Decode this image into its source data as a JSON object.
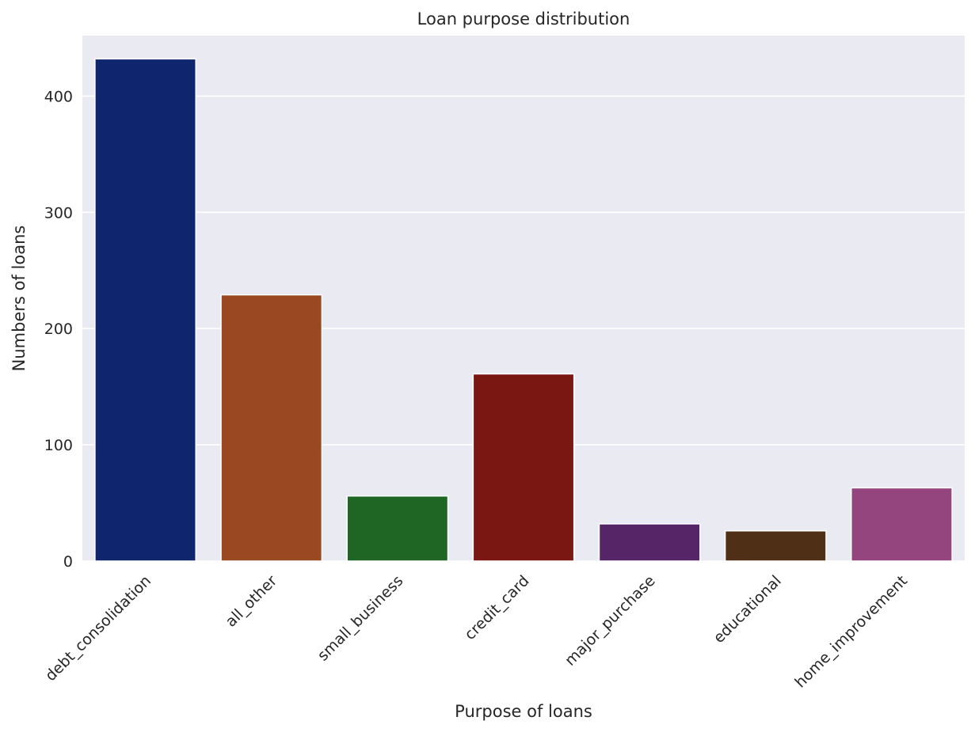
{
  "chart_data": {
    "type": "bar",
    "title": "Loan purpose distribution",
    "xlabel": "Purpose of loans",
    "ylabel": "Numbers of loans",
    "categories": [
      "debt_consolidation",
      "all_other",
      "small_business",
      "credit_card",
      "major_purchase",
      "educational",
      "home_improvement"
    ],
    "values": [
      432,
      229,
      56,
      161,
      32,
      26,
      63
    ],
    "ylim": [
      0,
      452
    ],
    "yticks": [
      0,
      100,
      200,
      300,
      400
    ],
    "colors": [
      "#0f266f",
      "#9a4821",
      "#1f6625",
      "#7b1713",
      "#552568",
      "#4f2f16",
      "#94457d"
    ],
    "background": "#eaeaf2",
    "grid": true,
    "grid_color": "#ffffff",
    "x_tick_rotation": -45
  }
}
